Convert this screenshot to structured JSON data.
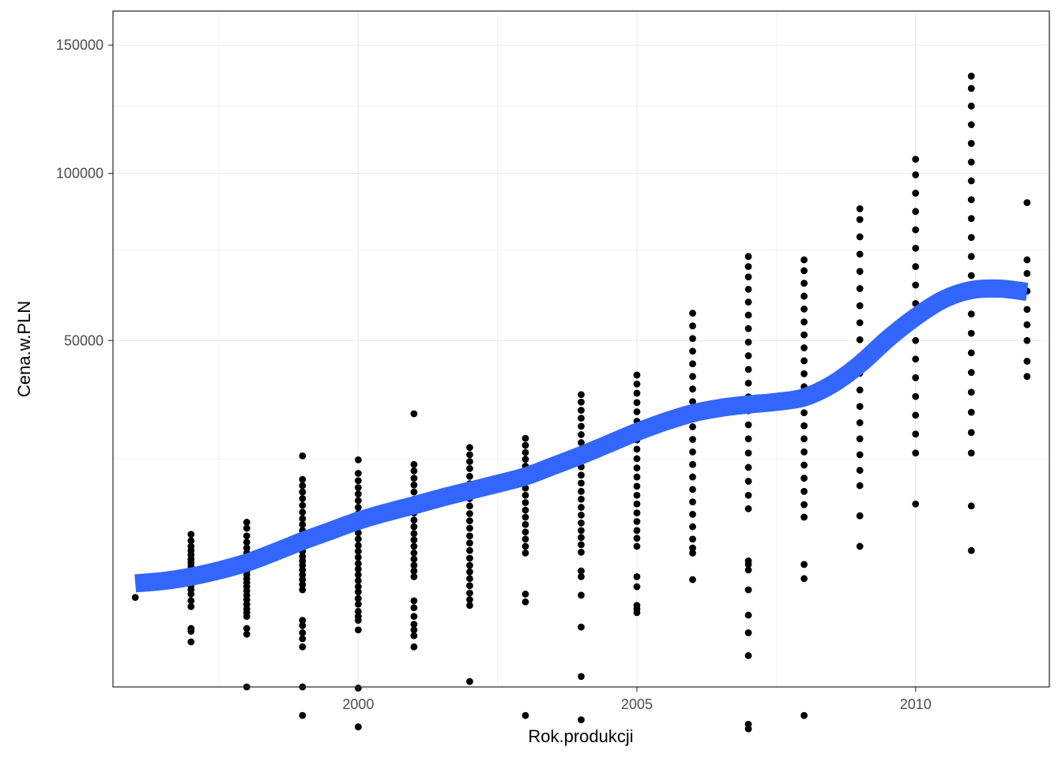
{
  "chart_data": {
    "type": "scatter",
    "title": "",
    "xlabel": "Rok.produkcji",
    "ylabel": "Cena.w.PLN",
    "y_scale": "sqrt",
    "xlim": [
      1995.6,
      2012.4
    ],
    "ylim": [
      1000,
      165000
    ],
    "x_ticks": [
      2000,
      2005,
      2010
    ],
    "x_tick_labels": [
      "2000",
      "2005",
      "2010"
    ],
    "y_ticks": [
      50000,
      100000,
      150000
    ],
    "y_tick_labels": [
      "50000",
      "100000",
      "150000"
    ],
    "grid": true,
    "theme": "bw",
    "colors": {
      "points": "#000000",
      "smooth": "#3366FF",
      "grid": "#ebebeb",
      "border": "#333333"
    },
    "points": [
      [
        1996,
        6600
      ],
      [
        1997,
        5800
      ],
      [
        1997,
        6300
      ],
      [
        1997,
        6900
      ],
      [
        1997,
        7300
      ],
      [
        1997,
        7700
      ],
      [
        1997,
        8100
      ],
      [
        1997,
        8500
      ],
      [
        1997,
        8900
      ],
      [
        1997,
        9300
      ],
      [
        1997,
        9700
      ],
      [
        1997,
        10100
      ],
      [
        1997,
        10500
      ],
      [
        1997,
        11000
      ],
      [
        1997,
        11500
      ],
      [
        1997,
        12000
      ],
      [
        1997,
        12700
      ],
      [
        1997,
        13500
      ],
      [
        1997,
        4100
      ],
      [
        1997,
        3900
      ],
      [
        1997,
        3200
      ],
      [
        1998,
        5000
      ],
      [
        1998,
        5300
      ],
      [
        1998,
        5600
      ],
      [
        1998,
        6000
      ],
      [
        1998,
        6400
      ],
      [
        1998,
        6800
      ],
      [
        1998,
        7200
      ],
      [
        1998,
        7600
      ],
      [
        1998,
        8000
      ],
      [
        1998,
        8400
      ],
      [
        1998,
        8800
      ],
      [
        1998,
        9200
      ],
      [
        1998,
        9600
      ],
      [
        1998,
        10100
      ],
      [
        1998,
        10600
      ],
      [
        1998,
        11200
      ],
      [
        1998,
        11800
      ],
      [
        1998,
        12500
      ],
      [
        1998,
        13300
      ],
      [
        1998,
        14300
      ],
      [
        1998,
        15100
      ],
      [
        1998,
        4100
      ],
      [
        1998,
        3700
      ],
      [
        1998,
        1000
      ],
      [
        1999,
        7300
      ],
      [
        1999,
        7800
      ],
      [
        1999,
        8300
      ],
      [
        1999,
        8800
      ],
      [
        1999,
        9300
      ],
      [
        1999,
        9800
      ],
      [
        1999,
        10300
      ],
      [
        1999,
        10800
      ],
      [
        1999,
        11400
      ],
      [
        1999,
        12000
      ],
      [
        1999,
        12600
      ],
      [
        1999,
        13300
      ],
      [
        1999,
        14000
      ],
      [
        1999,
        14800
      ],
      [
        1999,
        15600
      ],
      [
        1999,
        16500
      ],
      [
        1999,
        17500
      ],
      [
        1999,
        18500
      ],
      [
        1999,
        19500
      ],
      [
        1999,
        20500
      ],
      [
        1999,
        21500
      ],
      [
        1999,
        25500
      ],
      [
        1999,
        4700
      ],
      [
        1999,
        4300
      ],
      [
        1999,
        3800
      ],
      [
        1999,
        3400
      ],
      [
        1999,
        2900
      ],
      [
        1999,
        1000
      ],
      [
        1999,
        250
      ],
      [
        2000,
        5000
      ],
      [
        2000,
        5400
      ],
      [
        2000,
        6000
      ],
      [
        2000,
        6500
      ],
      [
        2000,
        7100
      ],
      [
        2000,
        7600
      ],
      [
        2000,
        8200
      ],
      [
        2000,
        8800
      ],
      [
        2000,
        9400
      ],
      [
        2000,
        10000
      ],
      [
        2000,
        10700
      ],
      [
        2000,
        11400
      ],
      [
        2000,
        12100
      ],
      [
        2000,
        12900
      ],
      [
        2000,
        13700
      ],
      [
        2000,
        14500
      ],
      [
        2000,
        15400
      ],
      [
        2000,
        16300
      ],
      [
        2000,
        17200
      ],
      [
        2000,
        18200
      ],
      [
        2000,
        19200
      ],
      [
        2000,
        20200
      ],
      [
        2000,
        21300
      ],
      [
        2000,
        22500
      ],
      [
        2000,
        24800
      ],
      [
        2000,
        4700
      ],
      [
        2000,
        4000
      ],
      [
        2000,
        960
      ],
      [
        2000,
        90
      ],
      [
        2001,
        8600
      ],
      [
        2001,
        9200
      ],
      [
        2001,
        9800
      ],
      [
        2001,
        10500
      ],
      [
        2001,
        11200
      ],
      [
        2001,
        12000
      ],
      [
        2001,
        12800
      ],
      [
        2001,
        13600
      ],
      [
        2001,
        14500
      ],
      [
        2001,
        15400
      ],
      [
        2001,
        16400
      ],
      [
        2001,
        17400
      ],
      [
        2001,
        18400
      ],
      [
        2001,
        19500
      ],
      [
        2001,
        20600
      ],
      [
        2001,
        21700
      ],
      [
        2001,
        22900
      ],
      [
        2001,
        24000
      ],
      [
        2001,
        33500
      ],
      [
        2001,
        6300
      ],
      [
        2001,
        5700
      ],
      [
        2001,
        5000
      ],
      [
        2001,
        4400
      ],
      [
        2001,
        4000
      ],
      [
        2001,
        3600
      ],
      [
        2001,
        2900
      ],
      [
        2002,
        5900
      ],
      [
        2002,
        6400
      ],
      [
        2002,
        7000
      ],
      [
        2002,
        7700
      ],
      [
        2002,
        8400
      ],
      [
        2002,
        9100
      ],
      [
        2002,
        9800
      ],
      [
        2002,
        10600
      ],
      [
        2002,
        11500
      ],
      [
        2002,
        12400
      ],
      [
        2002,
        13300
      ],
      [
        2002,
        14300
      ],
      [
        2002,
        15300
      ],
      [
        2002,
        16300
      ],
      [
        2002,
        17400
      ],
      [
        2002,
        18500
      ],
      [
        2002,
        19600
      ],
      [
        2002,
        20800
      ],
      [
        2002,
        22000
      ],
      [
        2002,
        23300
      ],
      [
        2002,
        24500
      ],
      [
        2002,
        25700
      ],
      [
        2002,
        27000
      ],
      [
        2002,
        1200
      ],
      [
        2003,
        11200
      ],
      [
        2003,
        12000
      ],
      [
        2003,
        12900
      ],
      [
        2003,
        13800
      ],
      [
        2003,
        14800
      ],
      [
        2003,
        15800
      ],
      [
        2003,
        16800
      ],
      [
        2003,
        17900
      ],
      [
        2003,
        19000
      ],
      [
        2003,
        20100
      ],
      [
        2003,
        21300
      ],
      [
        2003,
        22500
      ],
      [
        2003,
        23700
      ],
      [
        2003,
        24900
      ],
      [
        2003,
        26100
      ],
      [
        2003,
        27400
      ],
      [
        2003,
        28700
      ],
      [
        2003,
        6900
      ],
      [
        2003,
        6200
      ],
      [
        2003,
        250
      ],
      [
        2004,
        11300
      ],
      [
        2004,
        12200
      ],
      [
        2004,
        13100
      ],
      [
        2004,
        14000
      ],
      [
        2004,
        15000
      ],
      [
        2004,
        16100
      ],
      [
        2004,
        17200
      ],
      [
        2004,
        18400
      ],
      [
        2004,
        19600
      ],
      [
        2004,
        20900
      ],
      [
        2004,
        22200
      ],
      [
        2004,
        23600
      ],
      [
        2004,
        25000
      ],
      [
        2004,
        26400
      ],
      [
        2004,
        27900
      ],
      [
        2004,
        29400
      ],
      [
        2004,
        31000
      ],
      [
        2004,
        32600
      ],
      [
        2004,
        34200
      ],
      [
        2004,
        35900
      ],
      [
        2004,
        37500
      ],
      [
        2004,
        9200
      ],
      [
        2004,
        8600
      ],
      [
        2004,
        6800
      ],
      [
        2004,
        4200
      ],
      [
        2004,
        1400
      ],
      [
        2004,
        180
      ],
      [
        2005,
        12000
      ],
      [
        2005,
        13000
      ],
      [
        2005,
        14000
      ],
      [
        2005,
        15200
      ],
      [
        2005,
        16400
      ],
      [
        2005,
        17700
      ],
      [
        2005,
        19000
      ],
      [
        2005,
        20400
      ],
      [
        2005,
        21900
      ],
      [
        2005,
        23400
      ],
      [
        2005,
        25000
      ],
      [
        2005,
        26700
      ],
      [
        2005,
        28400
      ],
      [
        2005,
        30200
      ],
      [
        2005,
        32000
      ],
      [
        2005,
        33900
      ],
      [
        2005,
        35800
      ],
      [
        2005,
        37800
      ],
      [
        2005,
        39800
      ],
      [
        2005,
        41800
      ],
      [
        2005,
        8600
      ],
      [
        2005,
        7600
      ],
      [
        2005,
        5900
      ],
      [
        2005,
        5600
      ],
      [
        2005,
        5300
      ],
      [
        2006,
        12900
      ],
      [
        2006,
        14500
      ],
      [
        2006,
        16200
      ],
      [
        2006,
        18000
      ],
      [
        2006,
        19900
      ],
      [
        2006,
        21900
      ],
      [
        2006,
        24000
      ],
      [
        2006,
        26200
      ],
      [
        2006,
        28500
      ],
      [
        2006,
        30900
      ],
      [
        2006,
        33400
      ],
      [
        2006,
        36000
      ],
      [
        2006,
        38700
      ],
      [
        2006,
        41500
      ],
      [
        2006,
        44400
      ],
      [
        2006,
        47400
      ],
      [
        2006,
        50500
      ],
      [
        2006,
        53700
      ],
      [
        2006,
        57000
      ],
      [
        2006,
        11800
      ],
      [
        2006,
        11200
      ],
      [
        2006,
        8300
      ],
      [
        2007,
        17000
      ],
      [
        2007,
        19000
      ],
      [
        2007,
        21200
      ],
      [
        2007,
        23500
      ],
      [
        2007,
        26000
      ],
      [
        2007,
        28600
      ],
      [
        2007,
        31300
      ],
      [
        2007,
        34100
      ],
      [
        2007,
        37000
      ],
      [
        2007,
        40000
      ],
      [
        2007,
        43100
      ],
      [
        2007,
        46300
      ],
      [
        2007,
        49600
      ],
      [
        2007,
        53000
      ],
      [
        2007,
        56500
      ],
      [
        2007,
        60000
      ],
      [
        2007,
        63500
      ],
      [
        2007,
        67000
      ],
      [
        2007,
        70000
      ],
      [
        2007,
        73000
      ],
      [
        2007,
        10300
      ],
      [
        2007,
        9900
      ],
      [
        2007,
        9300
      ],
      [
        2007,
        7300
      ],
      [
        2007,
        5100
      ],
      [
        2007,
        3800
      ],
      [
        2007,
        2400
      ],
      [
        2007,
        120
      ],
      [
        2007,
        70
      ],
      [
        2008,
        15800
      ],
      [
        2008,
        17600
      ],
      [
        2008,
        19600
      ],
      [
        2008,
        21700
      ],
      [
        2008,
        23900
      ],
      [
        2008,
        26200
      ],
      [
        2008,
        28600
      ],
      [
        2008,
        31100
      ],
      [
        2008,
        33700
      ],
      [
        2008,
        36400
      ],
      [
        2008,
        39200
      ],
      [
        2008,
        42100
      ],
      [
        2008,
        45100
      ],
      [
        2008,
        48200
      ],
      [
        2008,
        51400
      ],
      [
        2008,
        54700
      ],
      [
        2008,
        58100
      ],
      [
        2008,
        61600
      ],
      [
        2008,
        65200
      ],
      [
        2008,
        68800
      ],
      [
        2008,
        72000
      ],
      [
        2008,
        9900
      ],
      [
        2008,
        8400
      ],
      [
        2008,
        250
      ],
      [
        2009,
        20500
      ],
      [
        2009,
        23000
      ],
      [
        2009,
        25700
      ],
      [
        2009,
        28600
      ],
      [
        2009,
        31700
      ],
      [
        2009,
        35000
      ],
      [
        2009,
        38500
      ],
      [
        2009,
        42200
      ],
      [
        2009,
        46100
      ],
      [
        2009,
        50200
      ],
      [
        2009,
        54500
      ],
      [
        2009,
        59000
      ],
      [
        2009,
        63700
      ],
      [
        2009,
        68600
      ],
      [
        2009,
        73700
      ],
      [
        2009,
        79000
      ],
      [
        2009,
        84500
      ],
      [
        2009,
        88000
      ],
      [
        2009,
        16000
      ],
      [
        2009,
        12000
      ],
      [
        2010,
        26000
      ],
      [
        2010,
        29500
      ],
      [
        2010,
        33200
      ],
      [
        2010,
        37100
      ],
      [
        2010,
        41200
      ],
      [
        2010,
        45500
      ],
      [
        2010,
        50000
      ],
      [
        2010,
        54700
      ],
      [
        2010,
        59600
      ],
      [
        2010,
        64700
      ],
      [
        2010,
        70000
      ],
      [
        2010,
        75500
      ],
      [
        2010,
        81200
      ],
      [
        2010,
        87100
      ],
      [
        2010,
        93200
      ],
      [
        2010,
        99500
      ],
      [
        2010,
        105000
      ],
      [
        2010,
        17700
      ],
      [
        2011,
        26000
      ],
      [
        2011,
        29800
      ],
      [
        2011,
        33800
      ],
      [
        2011,
        38000
      ],
      [
        2011,
        42400
      ],
      [
        2011,
        47000
      ],
      [
        2011,
        51800
      ],
      [
        2011,
        56800
      ],
      [
        2011,
        62000
      ],
      [
        2011,
        67400
      ],
      [
        2011,
        73000
      ],
      [
        2011,
        78800
      ],
      [
        2011,
        84800
      ],
      [
        2011,
        91000
      ],
      [
        2011,
        97400
      ],
      [
        2011,
        104000
      ],
      [
        2011,
        110800
      ],
      [
        2011,
        117800
      ],
      [
        2011,
        125000
      ],
      [
        2011,
        132000
      ],
      [
        2011,
        137000
      ],
      [
        2011,
        17400
      ],
      [
        2011,
        11500
      ],
      [
        2012,
        90000
      ],
      [
        2012,
        72000
      ],
      [
        2012,
        68000
      ],
      [
        2012,
        63000
      ],
      [
        2012,
        58000
      ],
      [
        2012,
        54000
      ],
      [
        2012,
        50000
      ],
      [
        2012,
        45000
      ],
      [
        2012,
        41500
      ]
    ],
    "series": [
      {
        "type": "smooth",
        "x": [
          1996,
          1996.5,
          1997,
          1997.5,
          1998,
          1998.5,
          1999,
          1999.5,
          2000,
          2000.5,
          2001,
          2001.5,
          2002,
          2002.5,
          2003,
          2003.5,
          2004,
          2004.5,
          2005,
          2005.5,
          2006,
          2006.5,
          2007,
          2007.5,
          2008,
          2008.5,
          2009,
          2009.5,
          2010,
          2010.5,
          2011,
          2011.5,
          2012
        ],
        "y": [
          7930,
          8160,
          8600,
          9250,
          10100,
          11300,
          12650,
          13950,
          15300,
          16450,
          17500,
          18650,
          19700,
          20800,
          22000,
          23750,
          25600,
          27700,
          29900,
          31900,
          33600,
          34700,
          35400,
          35950,
          36900,
          39700,
          44300,
          50400,
          56000,
          60700,
          63300,
          63700,
          62800
        ]
      }
    ]
  }
}
